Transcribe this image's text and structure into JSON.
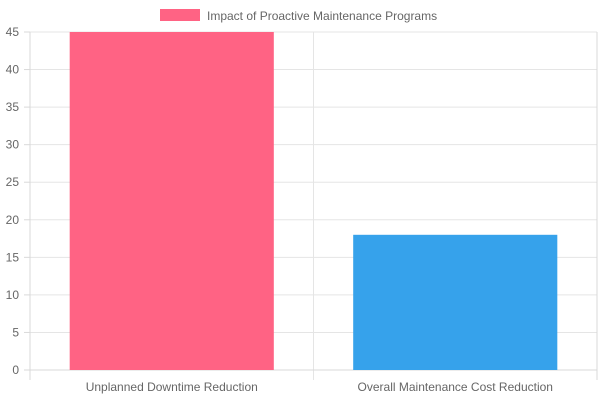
{
  "chart_data": {
    "type": "bar",
    "categories": [
      "Unplanned Downtime Reduction",
      "Overall Maintenance Cost Reduction"
    ],
    "series": [
      {
        "name": "Impact of Proactive Maintenance Programs",
        "values": [
          45,
          18
        ],
        "colors": [
          "#ff6384",
          "#36a2eb"
        ]
      }
    ],
    "title": "",
    "xlabel": "",
    "ylabel": "",
    "ylim": [
      0,
      45
    ],
    "yticks": [
      0,
      5,
      10,
      15,
      20,
      25,
      30,
      35,
      40,
      45
    ],
    "grid": true,
    "legend": "top-center"
  },
  "legend": {
    "label": "Impact of Proactive Maintenance Programs",
    "swatch_color": "#ff6384"
  }
}
